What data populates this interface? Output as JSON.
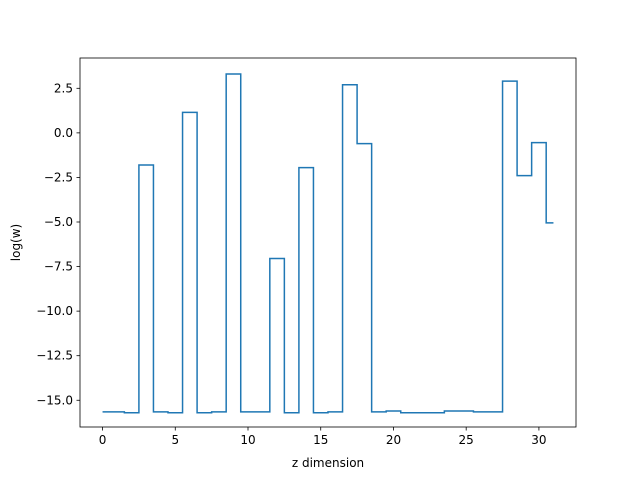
{
  "chart_data": {
    "type": "line",
    "drawstyle": "steps-mid",
    "xlabel": "z dimension",
    "ylabel": "log(w)",
    "xlim": [
      -1.55,
      32.55
    ],
    "ylim": [
      -16.5,
      4.2
    ],
    "xticks": [
      0,
      5,
      10,
      15,
      20,
      25,
      30
    ],
    "xtick_labels": [
      "0",
      "5",
      "10",
      "15",
      "20",
      "25",
      "30"
    ],
    "yticks": [
      2.5,
      0.0,
      -2.5,
      -5.0,
      -7.5,
      -10.0,
      -12.5,
      -15.0
    ],
    "ytick_labels": [
      "2.5",
      "0.0",
      "−2.5",
      "−5.0",
      "−7.5",
      "−10.0",
      "−12.5",
      "−15.0"
    ],
    "grid": false,
    "color": "#1f77b4",
    "series": [
      {
        "x": [
          0,
          1,
          2,
          3,
          4,
          5,
          6,
          7,
          8,
          9,
          10,
          11,
          12,
          13,
          14,
          15,
          16,
          17,
          18,
          19,
          20,
          21,
          22,
          23,
          24,
          25,
          26,
          27,
          28,
          29,
          30,
          31
        ],
        "values": [
          -15.65,
          -15.65,
          -15.7,
          -1.8,
          -15.65,
          -15.7,
          1.15,
          -15.7,
          -15.65,
          3.3,
          -15.65,
          -15.65,
          -7.05,
          -15.7,
          -1.95,
          -15.7,
          -15.65,
          2.7,
          -0.6,
          -15.65,
          -15.6,
          -15.7,
          -15.7,
          -15.7,
          -15.6,
          -15.6,
          -15.65,
          -15.65,
          2.9,
          -2.4,
          -0.55,
          -5.05
        ]
      }
    ]
  }
}
